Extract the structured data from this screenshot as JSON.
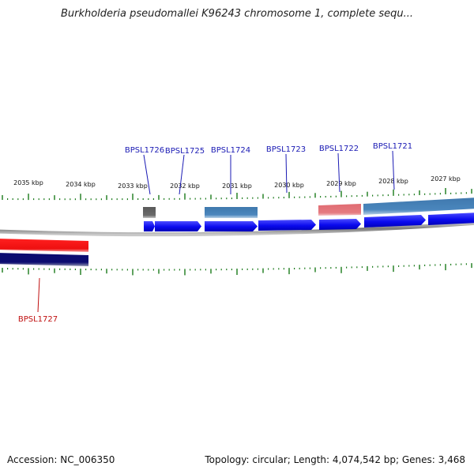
{
  "title": "Burkholderia pseudomallei K96243 chromosome 1, complete sequ...",
  "footer": {
    "accession": "Accession: NC_006350",
    "summary": "Topology: circular; Length: 4,074,542 bp; Genes: 3,468"
  },
  "colors": {
    "backbone": "#8c8c8c",
    "cds_forward": "#0a0aee",
    "cds_reverse": "#0c0c70",
    "feature_blue": "#4a86bd",
    "feature_red": "#ee1010",
    "feature_pink": "#e57a80",
    "feature_grey": "#6a6a6a",
    "ticks": "#1a7a1a",
    "label_blue": "#1a1ab4",
    "label_red": "#c01010"
  },
  "chart_data": {
    "type": "genome-map",
    "scale_unit": "kbp",
    "scale_labels": [
      "2035 kbp",
      "2034 kbp",
      "2033 kbp",
      "2032 kbp",
      "2031 kbp",
      "2030 kbp",
      "2029 kbp",
      "2028 kbp",
      "2027 kbp"
    ],
    "genes": [
      {
        "name": "BPSL1727",
        "strand": "reverse"
      },
      {
        "name": "BPSL1726",
        "strand": "forward"
      },
      {
        "name": "BPSL1725",
        "strand": "forward"
      },
      {
        "name": "BPSL1724",
        "strand": "forward"
      },
      {
        "name": "BPSL1723",
        "strand": "forward"
      },
      {
        "name": "BPSL1722",
        "strand": "forward"
      },
      {
        "name": "BPSL1721",
        "strand": "forward"
      }
    ]
  }
}
